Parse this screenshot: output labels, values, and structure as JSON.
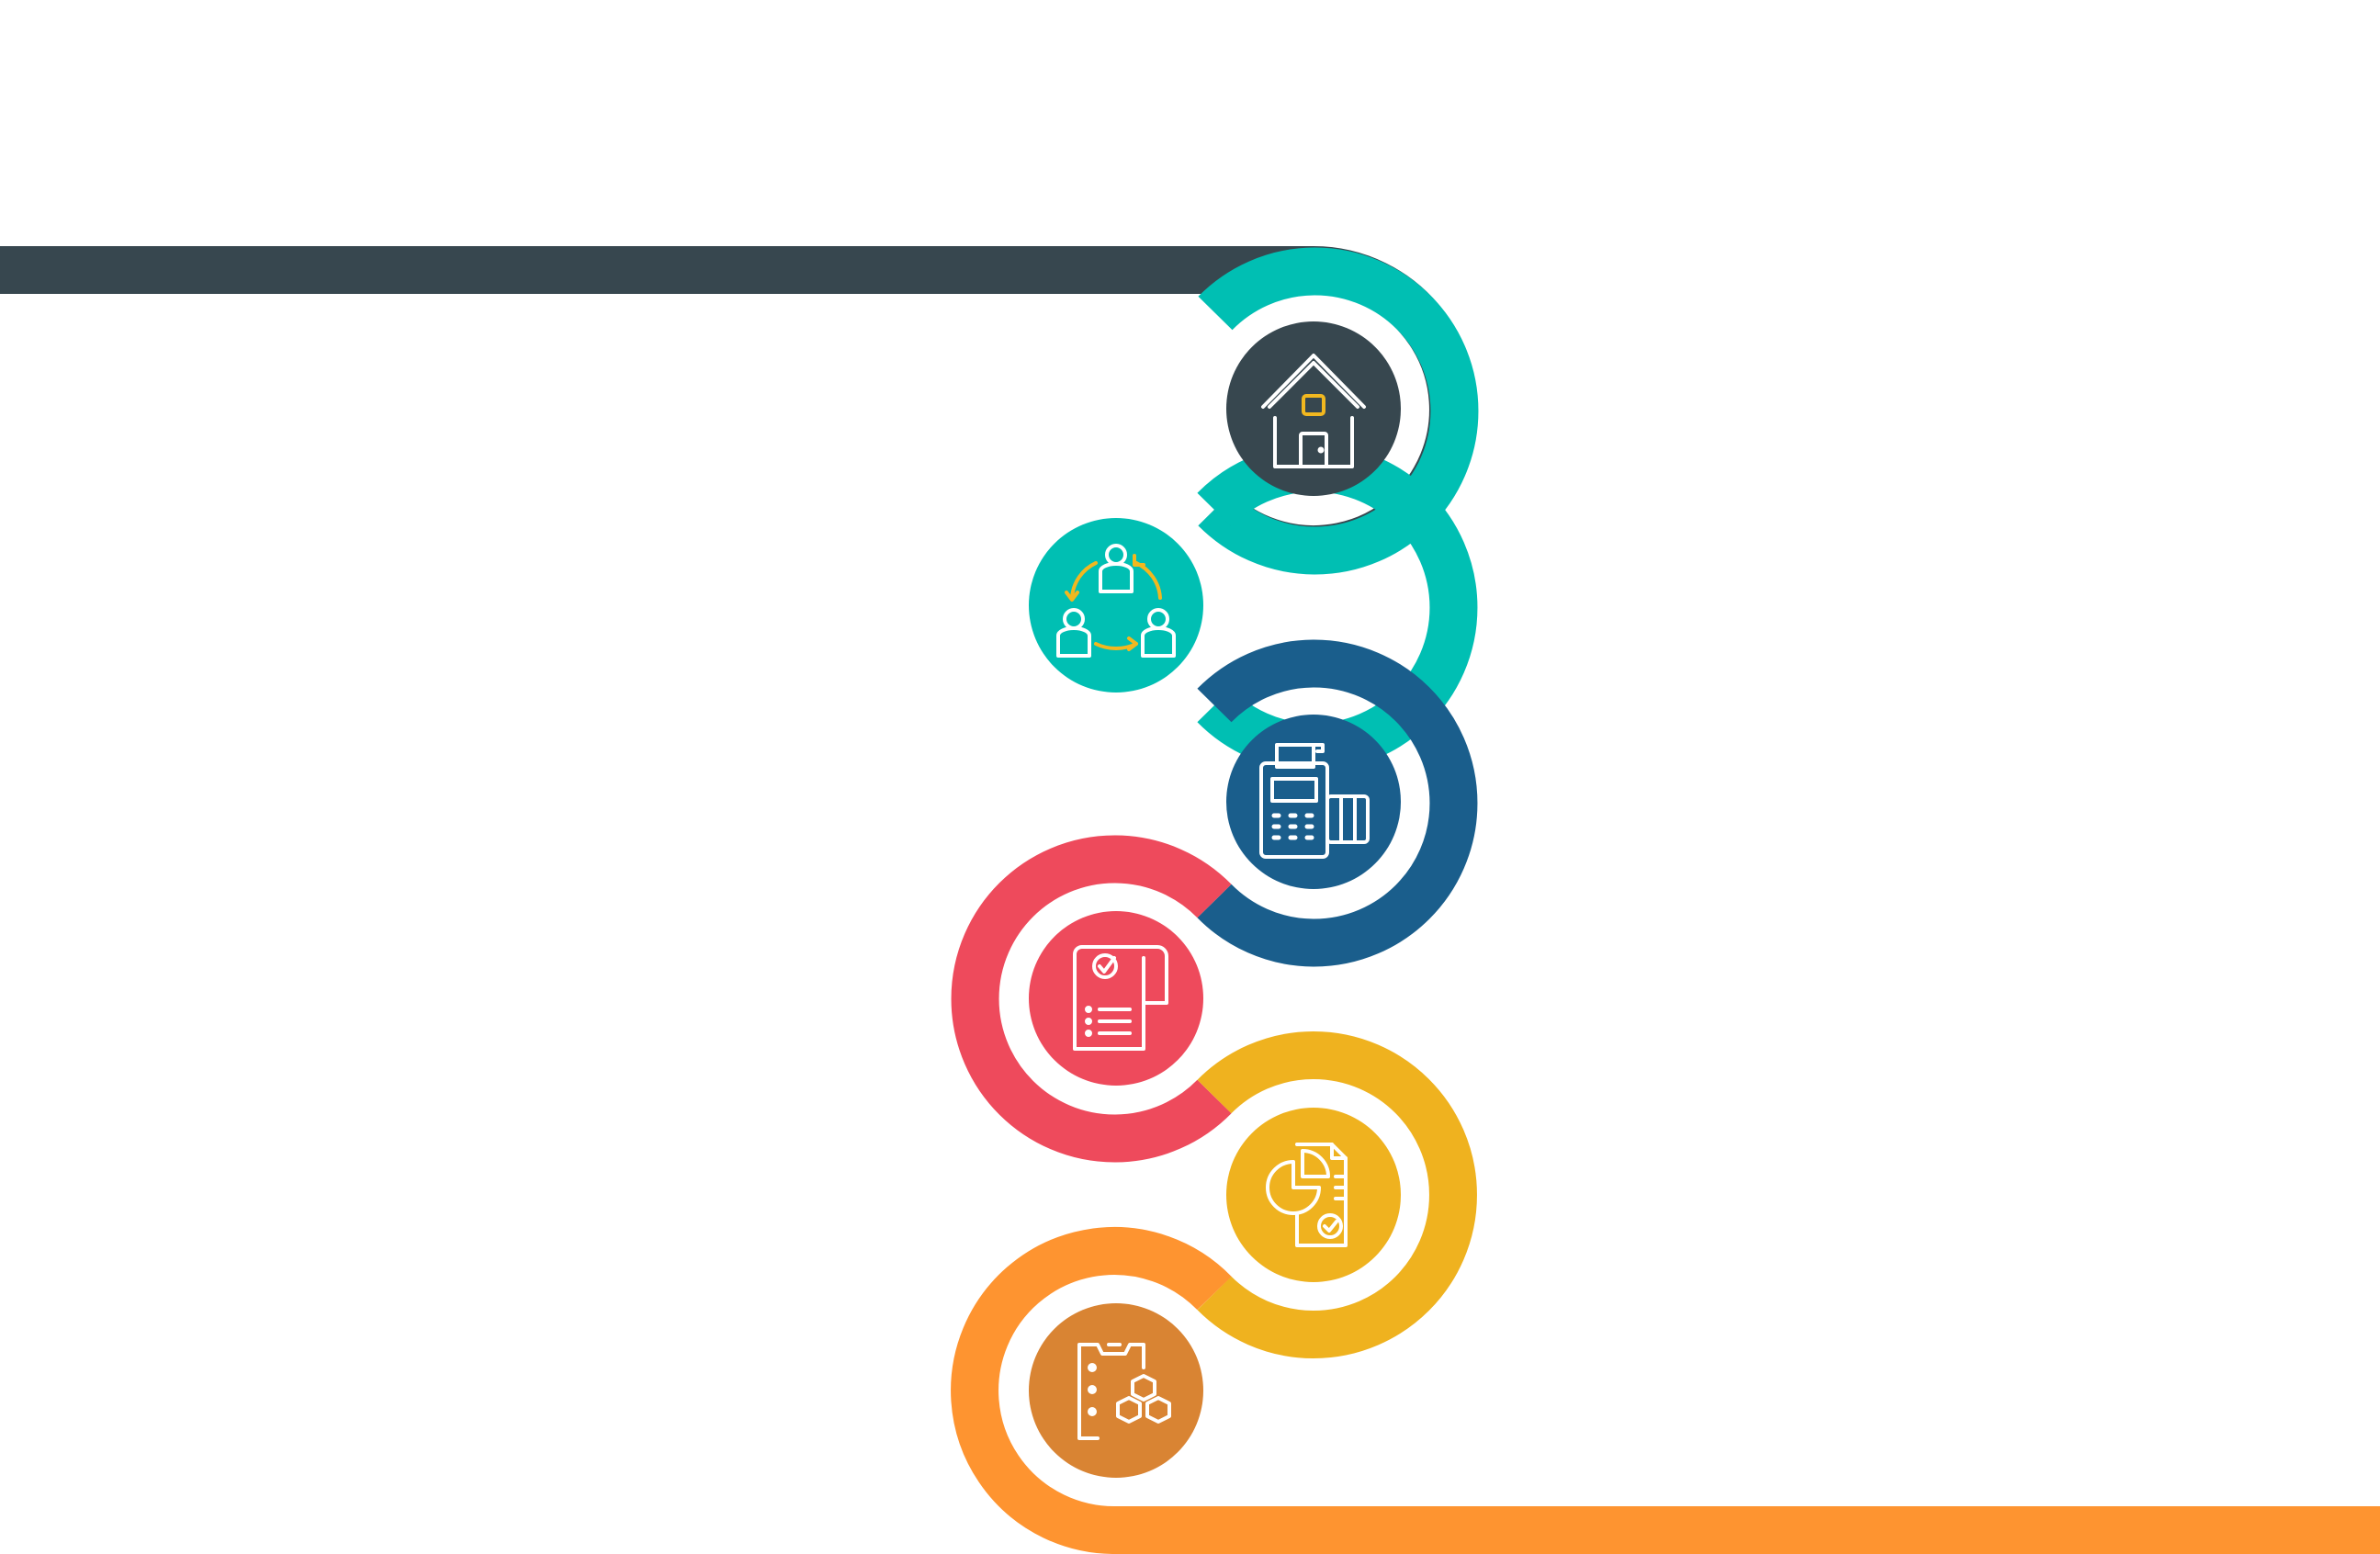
{
  "diagram": {
    "type": "winding-process-path",
    "steps": [
      {
        "key": "house",
        "icon": "house-icon",
        "color": "#37474f"
      },
      {
        "key": "team",
        "icon": "team-rotation-icon",
        "color": "#00bfb3"
      },
      {
        "key": "payment",
        "icon": "payment-terminal-icon",
        "color": "#1a5e8c"
      },
      {
        "key": "checklist",
        "icon": "checklist-document-icon",
        "color": "#ee4a5c"
      },
      {
        "key": "report",
        "icon": "chart-report-icon",
        "color": "#efb21f"
      },
      {
        "key": "inventory",
        "icon": "inventory-boxes-icon",
        "color": "#fe9430",
        "disc_color": "#d98433"
      }
    ],
    "accent_icon_color": "#f2b81f"
  }
}
